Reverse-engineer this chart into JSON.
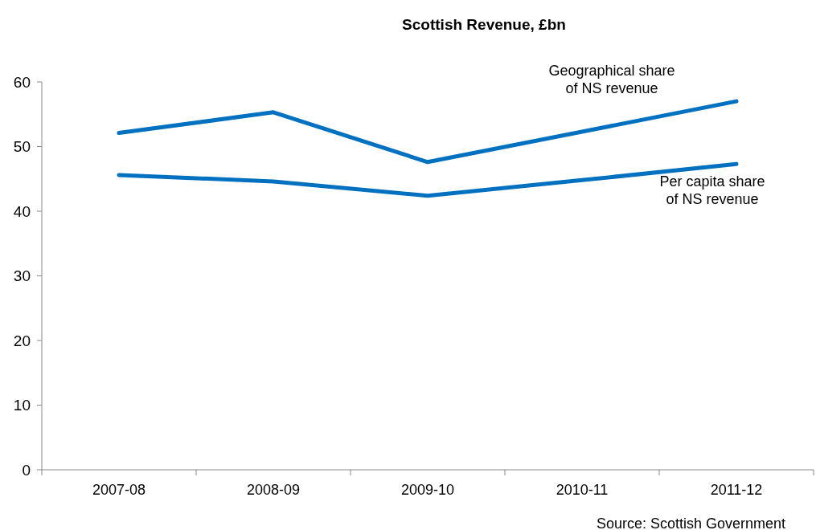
{
  "chart_data": {
    "type": "line",
    "title": "Scottish Revenue, £bn",
    "categories": [
      "2007-08",
      "2008-09",
      "2009-10",
      "2010-11",
      "2011-12"
    ],
    "series": [
      {
        "name": "Geographical share of NS revenue",
        "color": "#0070c0",
        "values": [
          52.1,
          55.3,
          47.6,
          52.3,
          57.0
        ]
      },
      {
        "name": "Per capita share of NS revenue",
        "color": "#0070c0",
        "values": [
          45.6,
          44.6,
          42.4,
          44.8,
          47.3
        ]
      }
    ],
    "ylim": [
      0,
      60
    ],
    "yticks": [
      0,
      10,
      20,
      30,
      40,
      50,
      60
    ],
    "grid": false,
    "marker": "none",
    "line_style": "solid",
    "annotations": [
      "Source: Scottish Government"
    ]
  }
}
